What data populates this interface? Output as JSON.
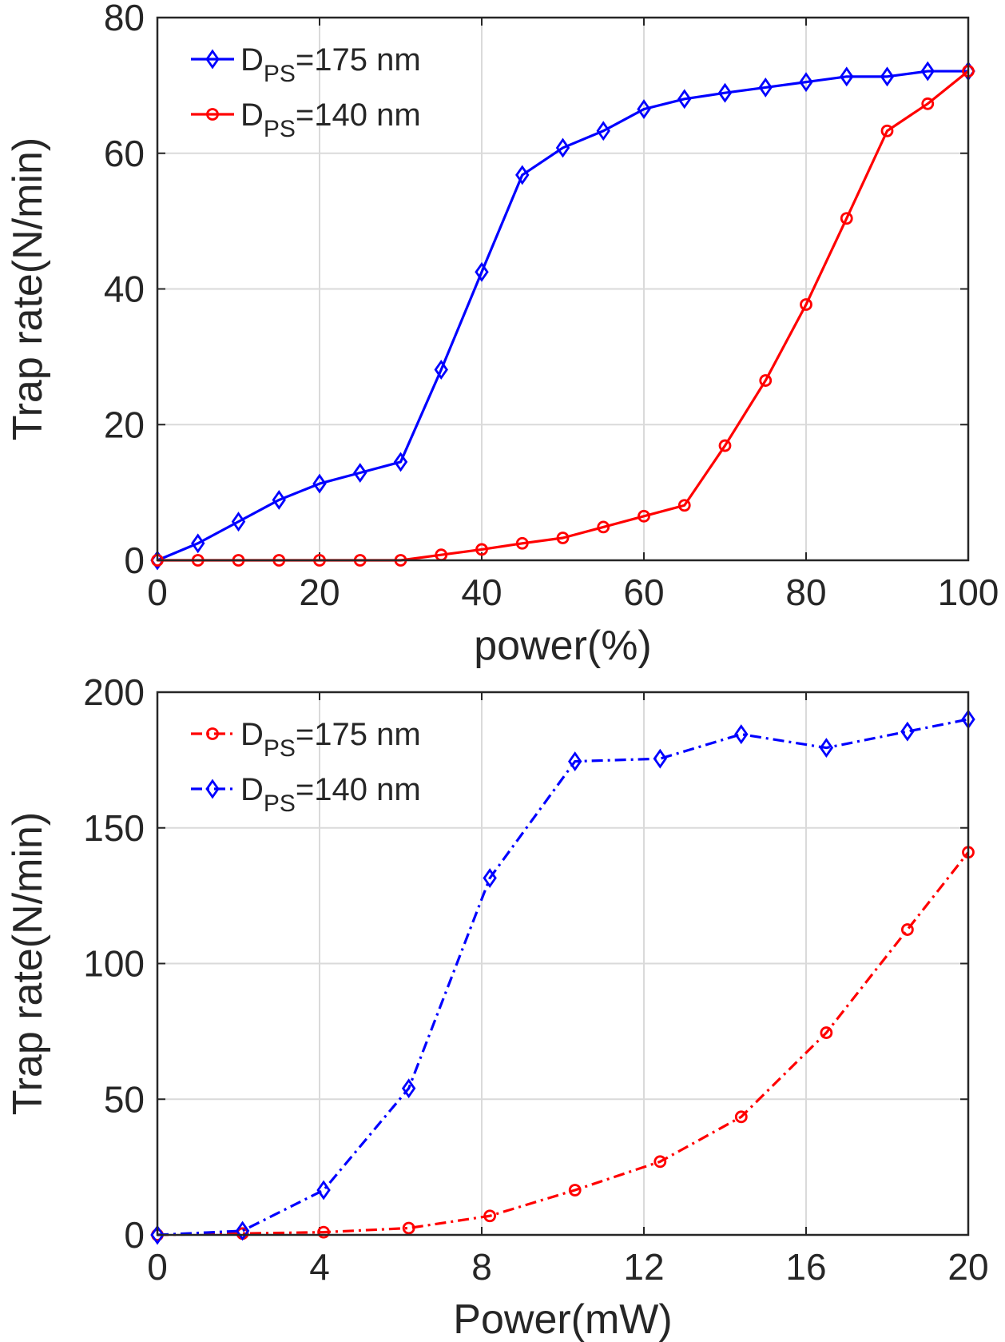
{
  "chart_data": [
    {
      "type": "line",
      "xlabel": "power(%)",
      "ylabel": "Trap rate(N/min)",
      "xlim": [
        0,
        100
      ],
      "ylim": [
        0,
        80
      ],
      "xticks": [
        0,
        20,
        40,
        60,
        80,
        100
      ],
      "yticks": [
        0,
        20,
        40,
        60,
        80
      ],
      "x_tick_labels": [
        "0",
        "20",
        "40",
        "60",
        "80",
        "100"
      ],
      "y_tick_labels": [
        "0",
        "20",
        "40",
        "60",
        "80"
      ],
      "grid": true,
      "legend_position": "top-left",
      "series": [
        {
          "name": "D_PS=175 nm",
          "label_main": "D",
          "label_sub": "PS",
          "label_rest": "=175 nm",
          "color": "#0000ff",
          "marker": "diamond",
          "line_style": "solid",
          "x": [
            0,
            5,
            10,
            15,
            20,
            25,
            30,
            35,
            40,
            45,
            50,
            55,
            60,
            65,
            70,
            75,
            80,
            85,
            90,
            95,
            100
          ],
          "values": [
            0,
            2.5,
            5.7,
            8.9,
            11.3,
            12.9,
            14.5,
            28.1,
            42.5,
            56.8,
            60.8,
            63.3,
            66.5,
            68.0,
            68.9,
            69.7,
            70.5,
            71.3,
            71.3,
            72.1,
            72.1
          ]
        },
        {
          "name": "D_PS=140 nm",
          "label_main": "D",
          "label_sub": "PS",
          "label_rest": "=140 nm",
          "color": "#ff0000",
          "marker": "circle",
          "line_style": "solid",
          "x": [
            0,
            5,
            10,
            15,
            20,
            25,
            30,
            35,
            40,
            45,
            50,
            55,
            60,
            65,
            70,
            75,
            80,
            85,
            90,
            95,
            100
          ],
          "values": [
            0,
            0,
            0,
            0,
            0,
            0,
            0,
            0.8,
            1.6,
            2.5,
            3.3,
            4.9,
            6.5,
            8.1,
            16.9,
            26.5,
            37.7,
            50.4,
            63.3,
            67.3,
            72.1
          ]
        }
      ]
    },
    {
      "type": "line",
      "xlabel": "Power(mW)",
      "ylabel": "Trap rate(N/min)",
      "xlim": [
        0,
        20
      ],
      "ylim": [
        0,
        200
      ],
      "xticks": [
        0,
        4,
        8,
        12,
        16,
        20
      ],
      "yticks": [
        0,
        50,
        100,
        150,
        200
      ],
      "x_tick_labels": [
        "0",
        "4",
        "8",
        "12",
        "16",
        "20"
      ],
      "y_tick_labels": [
        "0",
        "50",
        "100",
        "150",
        "200"
      ],
      "grid": true,
      "legend_position": "top-left",
      "series": [
        {
          "name": "D_PS=175 nm",
          "label_main": "D",
          "label_sub": "PS",
          "label_rest": "=175 nm",
          "color": "#ff0000",
          "marker": "circle",
          "line_style": "dash-dot",
          "x": [
            0,
            2.1,
            4.1,
            6.2,
            8.2,
            10.3,
            12.4,
            14.4,
            16.5,
            18.5,
            20
          ],
          "values": [
            0,
            0.5,
            1,
            2.5,
            7,
            16.5,
            27,
            43.5,
            74.5,
            112.5,
            141
          ]
        },
        {
          "name": "D_PS=140 nm",
          "label_main": "D",
          "label_sub": "PS",
          "label_rest": "=140 nm",
          "color": "#0000ff",
          "marker": "diamond",
          "line_style": "dash-dot",
          "x": [
            0,
            2.1,
            4.1,
            6.2,
            8.2,
            10.3,
            12.4,
            14.4,
            16.5,
            18.5,
            20
          ],
          "values": [
            0,
            1.5,
            16.5,
            54,
            131.5,
            174.5,
            175.5,
            184.5,
            179.5,
            185.5,
            190
          ]
        }
      ]
    }
  ]
}
